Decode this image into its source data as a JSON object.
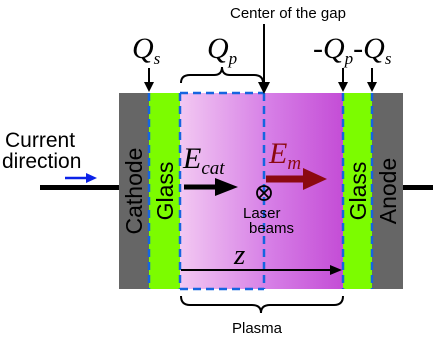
{
  "labels": {
    "center_of_gap": "Center of the gap",
    "current": "Current",
    "direction": "direction",
    "cathode": "Cathode",
    "anode": "Anode",
    "glass_left": "Glass",
    "glass_right": "Glass",
    "laser_line1": "Laser",
    "laser_line2": "beams",
    "plasma": "Plasma"
  },
  "symbols": {
    "Q": "Q",
    "s": "s",
    "p": "p",
    "minus": "-",
    "E": "E",
    "cat": "cat",
    "m": "m",
    "z": "z"
  },
  "colors": {
    "electrode": "#666666",
    "glass": "#7cfc00",
    "plasma_light": "#f2c8f2",
    "plasma_dark": "#c44dd6",
    "dashed": "#1565e0",
    "arrow_cat": "#000000",
    "arrow_m": "#8b0a10",
    "current_arrow": "#0b22e8"
  }
}
